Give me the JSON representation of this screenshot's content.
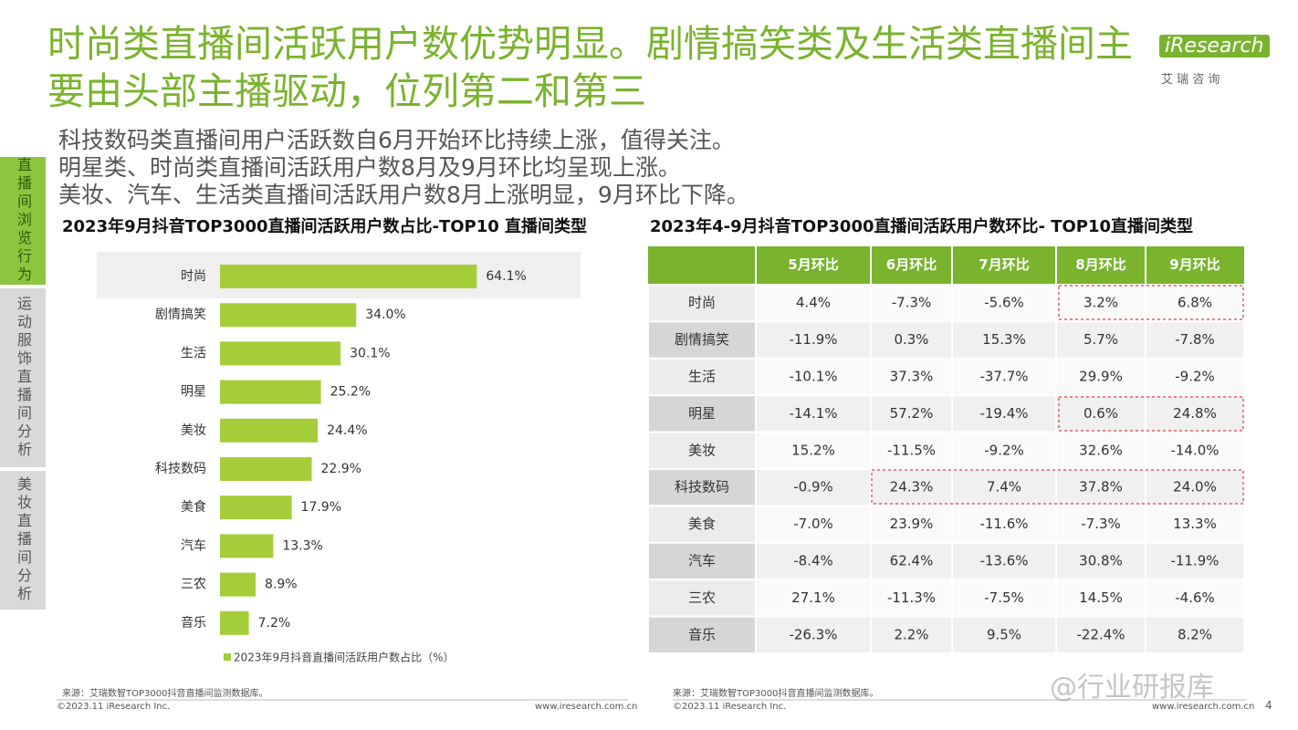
{
  "header": {
    "title": "时尚类直播间活跃用户数优势明显。剧情搞笑类及生活类直播间主要由头部主播驱动，位列第二和第三",
    "logo": "iResearch",
    "logo_sub": "艾 瑞 咨 询"
  },
  "sidebar": [
    "直播间浏览行为",
    "运动服饰直播间分析",
    "美妆直播间分析"
  ],
  "bullets": [
    "科技数码类直播间用户活跃数自6月开始环比持续上涨，值得关注。",
    "明星类、时尚类直播间活跃用户数8月及9月环比均呈现上涨。",
    "美妆、汽车、生活类直播间活跃用户数8月上涨明显，9月环比下降。"
  ],
  "chart_data": {
    "type": "bar",
    "orientation": "horizontal",
    "title": "2023年9月抖音TOP3000直播间活跃用户数占比-TOP10 直播间类型",
    "categories": [
      "时尚",
      "剧情搞笑",
      "生活",
      "明星",
      "美妆",
      "科技数码",
      "美食",
      "汽车",
      "三农",
      "音乐"
    ],
    "series": [
      {
        "name": "2023年9月抖音直播间活跃用户数占比（%）",
        "color": "#a5cd39",
        "values": [
          64.1,
          34.0,
          30.1,
          25.2,
          24.4,
          22.9,
          17.9,
          13.3,
          8.9,
          7.2
        ],
        "value_labels": [
          "64.1%",
          "34.0%",
          "30.1%",
          "25.2%",
          "24.4%",
          "22.9%",
          "17.9%",
          "13.3%",
          "8.9%",
          "7.2%"
        ]
      }
    ],
    "xlim": [
      0,
      90
    ]
  },
  "table": {
    "title": "2023年4-9月抖音TOP3000直播间活跃用户数环比- TOP10直播间类型",
    "columns": [
      "5月环比",
      "6月环比",
      "7月环比",
      "8月环比",
      "9月环比"
    ],
    "rows": [
      {
        "label": "时尚",
        "cells": [
          "4.4%",
          "-7.3%",
          "-5.6%",
          "3.2%",
          "6.8%"
        ]
      },
      {
        "label": "剧情搞笑",
        "cells": [
          "-11.9%",
          "0.3%",
          "15.3%",
          "5.7%",
          "-7.8%"
        ]
      },
      {
        "label": "生活",
        "cells": [
          "-10.1%",
          "37.3%",
          "-37.7%",
          "29.9%",
          "-9.2%"
        ]
      },
      {
        "label": "明星",
        "cells": [
          "-14.1%",
          "57.2%",
          "-19.4%",
          "0.6%",
          "24.8%"
        ]
      },
      {
        "label": "美妆",
        "cells": [
          "15.2%",
          "-11.5%",
          "-9.2%",
          "32.6%",
          "-14.0%"
        ]
      },
      {
        "label": "科技数码",
        "cells": [
          "-0.9%",
          "24.3%",
          "7.4%",
          "37.8%",
          "24.0%"
        ]
      },
      {
        "label": "美食",
        "cells": [
          "-7.0%",
          "23.9%",
          "-11.6%",
          "-7.3%",
          "13.3%"
        ]
      },
      {
        "label": "汽车",
        "cells": [
          "-8.4%",
          "62.4%",
          "-13.6%",
          "30.8%",
          "-11.9%"
        ]
      },
      {
        "label": "三农",
        "cells": [
          "27.1%",
          "-11.3%",
          "-7.5%",
          "14.5%",
          "-4.6%"
        ]
      },
      {
        "label": "音乐",
        "cells": [
          "-26.3%",
          "2.2%",
          "9.5%",
          "-22.4%",
          "8.2%"
        ]
      }
    ]
  },
  "footer": {
    "left_source": "来源：艾瑞数智TOP3000抖音直播间监测数据库。",
    "left_copyright": "©2023.11 iResearch Inc.",
    "left_url": "www.iresearch.com.cn",
    "right_source": "来源：艾瑞数智TOP3000抖音直播间监测数据库。",
    "right_copyright": "©2023.11 iResearch Inc.",
    "right_url": "www.iresearch.com.cn",
    "page": "4",
    "watermark": "@行业研报库"
  }
}
